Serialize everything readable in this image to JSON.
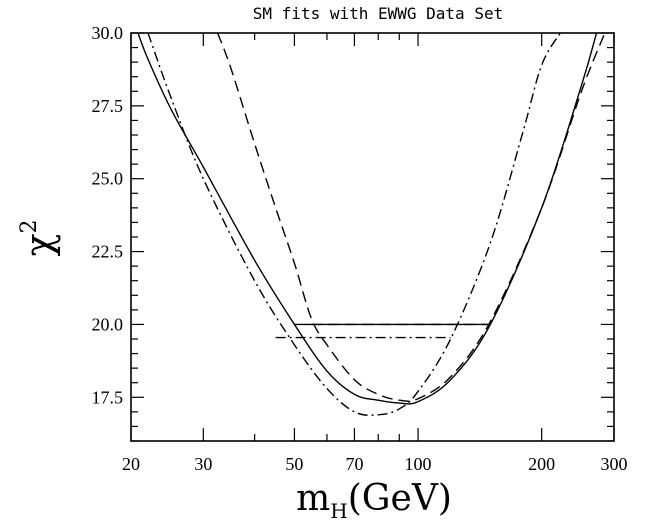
{
  "chart_data": {
    "type": "line",
    "title": "SM fits with EWWG Data Set",
    "xlabel": "m",
    "xlabel_sub": "H",
    "xlabel_unit": "(GeV)",
    "ylabel": "χ",
    "ylabel_sup": "2",
    "x_scale": "log",
    "xlim": [
      20,
      300
    ],
    "ylim": [
      16,
      30
    ],
    "x_ticks": [
      20,
      30,
      50,
      70,
      100,
      200,
      300
    ],
    "x_tick_labels": [
      "20",
      "30",
      "50",
      "70",
      "100",
      "200",
      "300"
    ],
    "y_ticks": [
      17.5,
      20.0,
      22.5,
      25.0,
      27.5,
      30.0
    ],
    "y_tick_labels": [
      "17.5",
      "20.0",
      "22.5",
      "25.0",
      "27.5",
      "30.0"
    ],
    "grid": false,
    "series": [
      {
        "style": "solid",
        "x": [
          20.8,
          22,
          25,
          30,
          40,
          50,
          60,
          70,
          80,
          90,
          100,
          120,
          150,
          200,
          250,
          272
        ],
        "y": [
          30.0,
          29.1,
          27.4,
          25.4,
          22.2,
          20.0,
          18.4,
          17.6,
          17.4,
          17.3,
          17.35,
          18.1,
          20.0,
          24.0,
          28.2,
          30.0
        ]
      },
      {
        "style": "dashed",
        "x": [
          32.5,
          35,
          40,
          45,
          50,
          55,
          60,
          70,
          80,
          90,
          100,
          120,
          150,
          200,
          250,
          285
        ],
        "y": [
          30.0,
          28.8,
          26.2,
          24.0,
          22.1,
          20.2,
          19.3,
          18.1,
          17.6,
          17.4,
          17.45,
          18.2,
          20.1,
          24.0,
          28.0,
          30.0
        ]
      },
      {
        "style": "dashdot",
        "x": [
          22,
          25,
          30,
          40,
          50,
          60,
          70,
          80,
          90,
          100,
          120,
          150,
          180,
          200,
          222
        ],
        "y": [
          30.0,
          27.8,
          25.0,
          21.5,
          19.3,
          17.8,
          17.0,
          16.9,
          17.1,
          17.7,
          19.5,
          22.8,
          26.6,
          28.9,
          30.0
        ]
      }
    ],
    "horizontal_segments": [
      {
        "style": "solid",
        "y": 20.0,
        "x_from": 50,
        "x_to": 148
      },
      {
        "style": "dashed",
        "y": 20.0,
        "x_from": 55,
        "x_to": 150
      },
      {
        "style": "dashdot",
        "y": 19.55,
        "x_from": 45,
        "x_to": 120
      }
    ]
  }
}
